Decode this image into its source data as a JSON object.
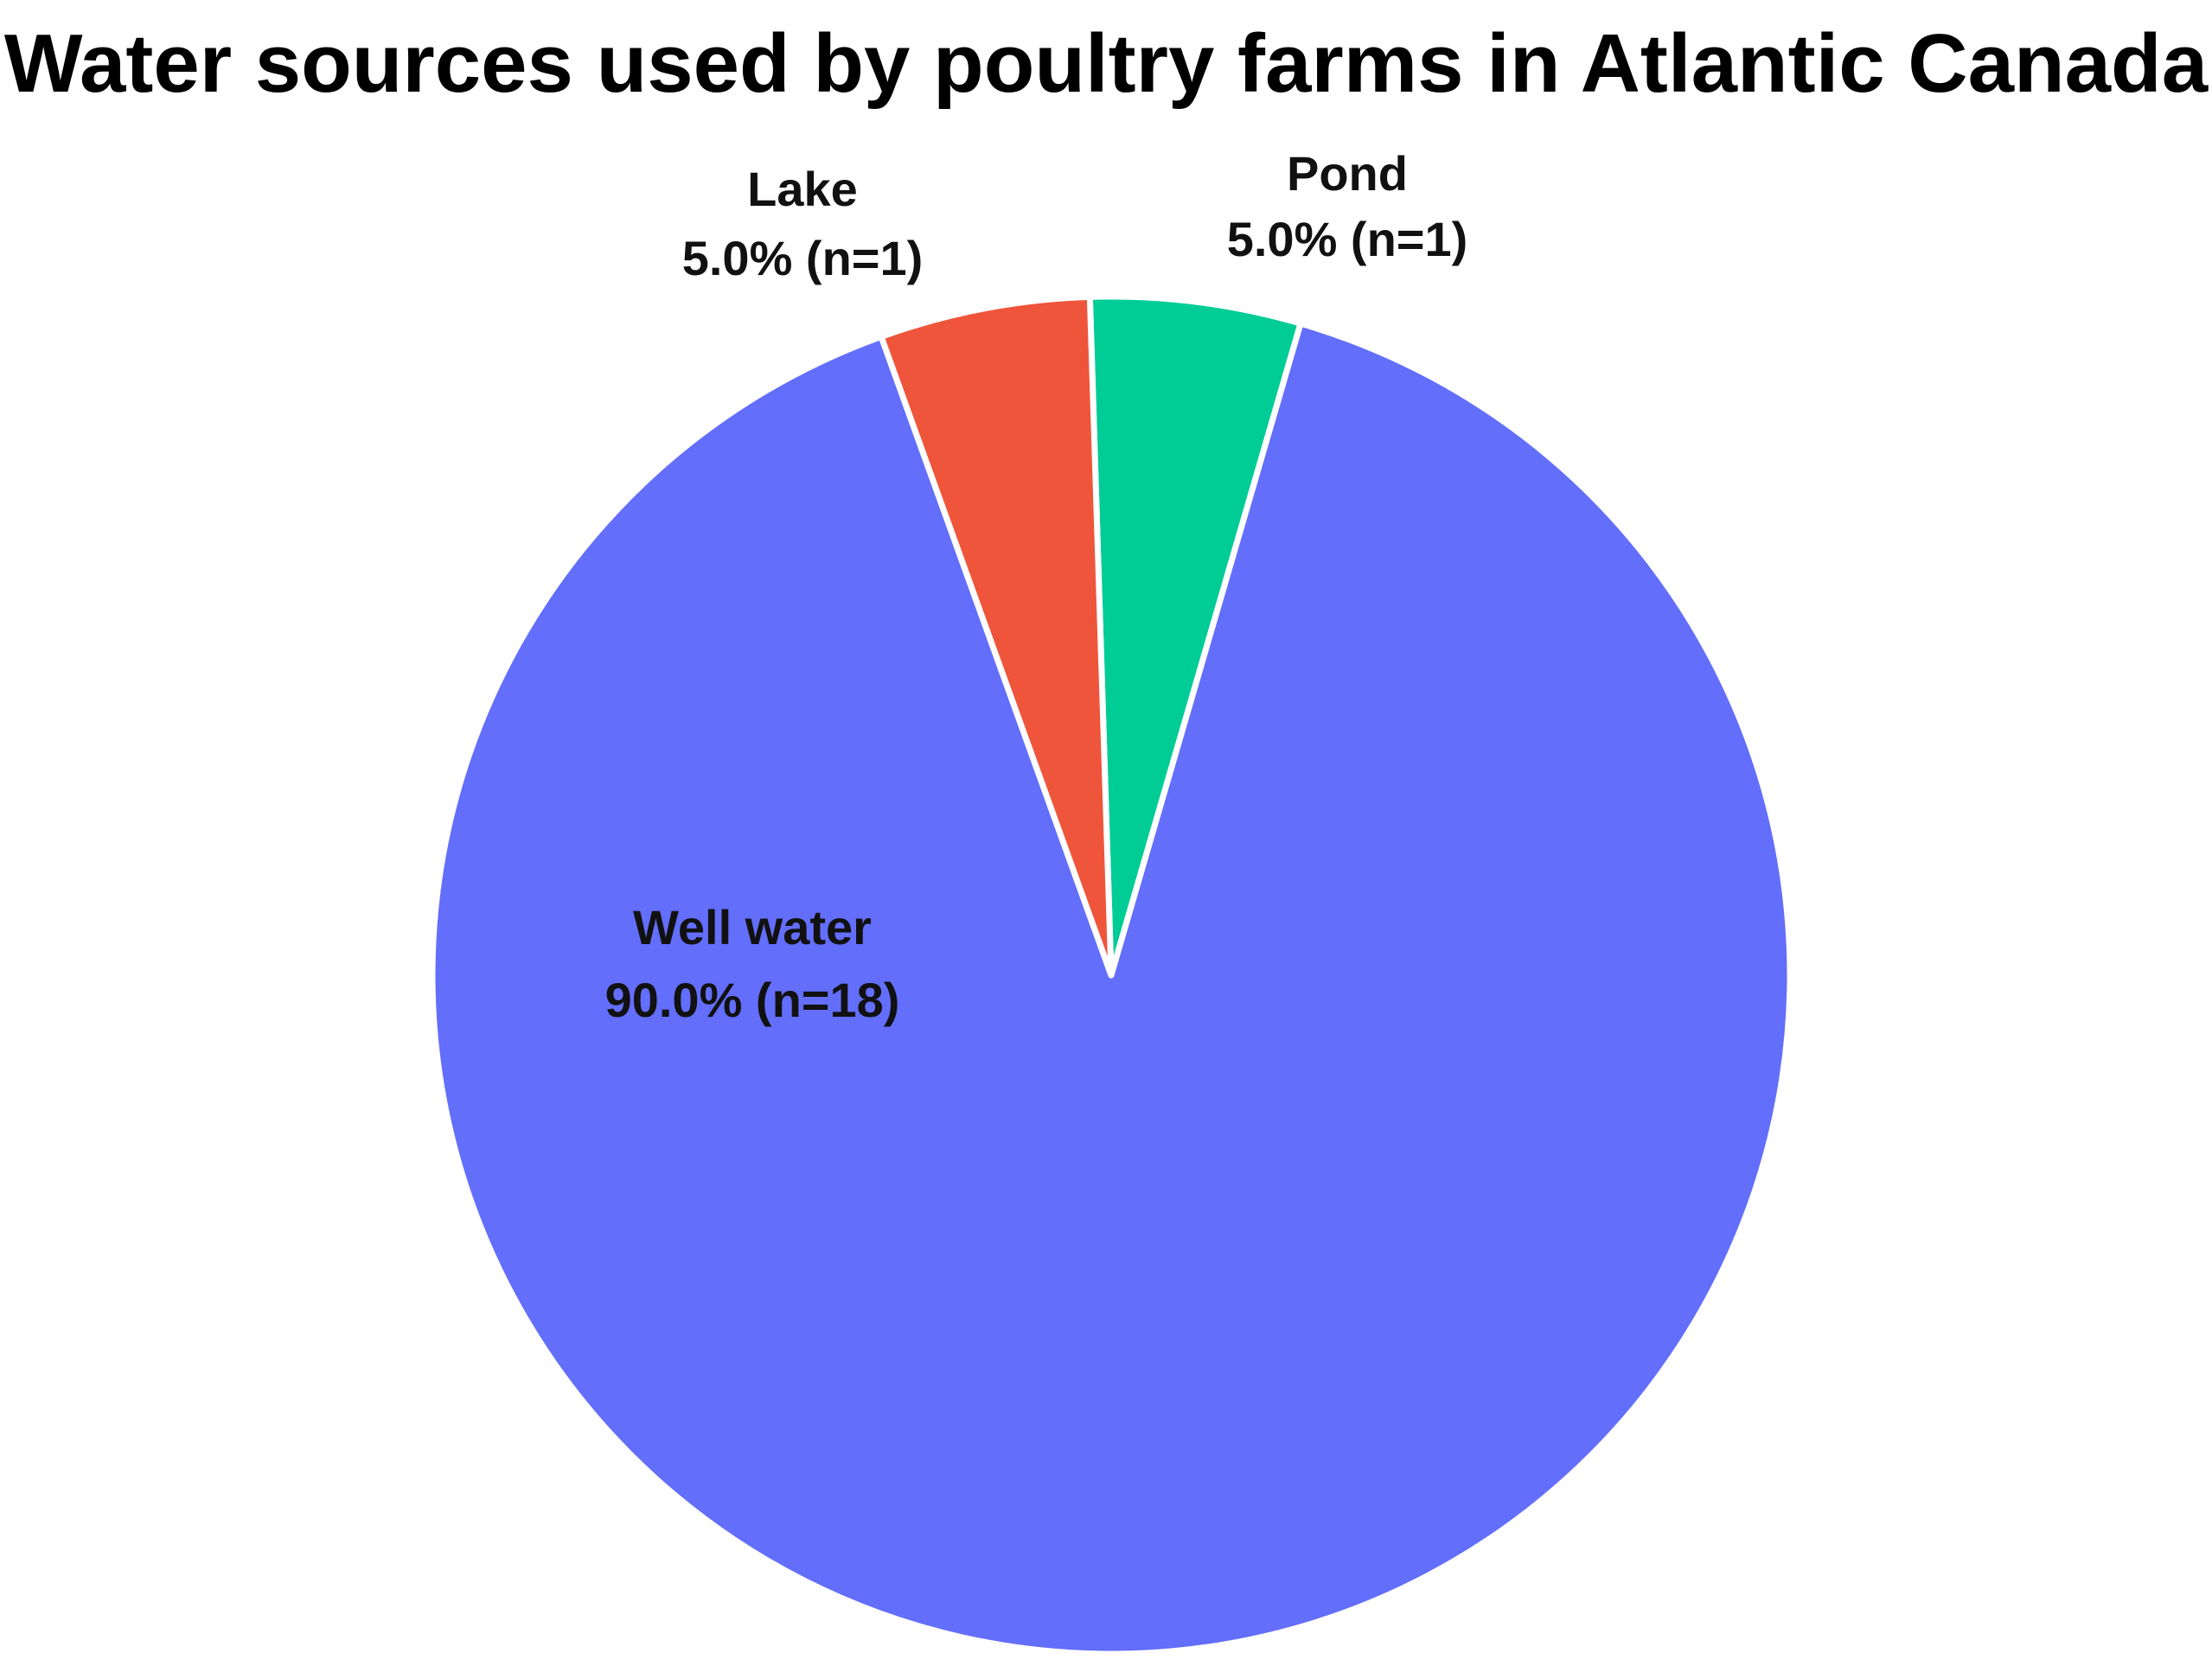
{
  "chart_data": {
    "type": "pie",
    "title": "Water sources used by poultry farms in Atlantic Canada",
    "slices": [
      {
        "label": "Pond",
        "value": 1,
        "percent_text": "5.0% (n=1)",
        "color": "#00CC96"
      },
      {
        "label": "Well water",
        "value": 18,
        "percent_text": "90.0% (n=18)",
        "color": "#636EFA"
      },
      {
        "label": "Lake",
        "value": 1,
        "percent_text": "5.0% (n=1)",
        "color": "#EF553B"
      }
    ],
    "start_angle_deg": -1.8,
    "direction": "clockwise",
    "slice_separator_color": "#ffffff"
  }
}
